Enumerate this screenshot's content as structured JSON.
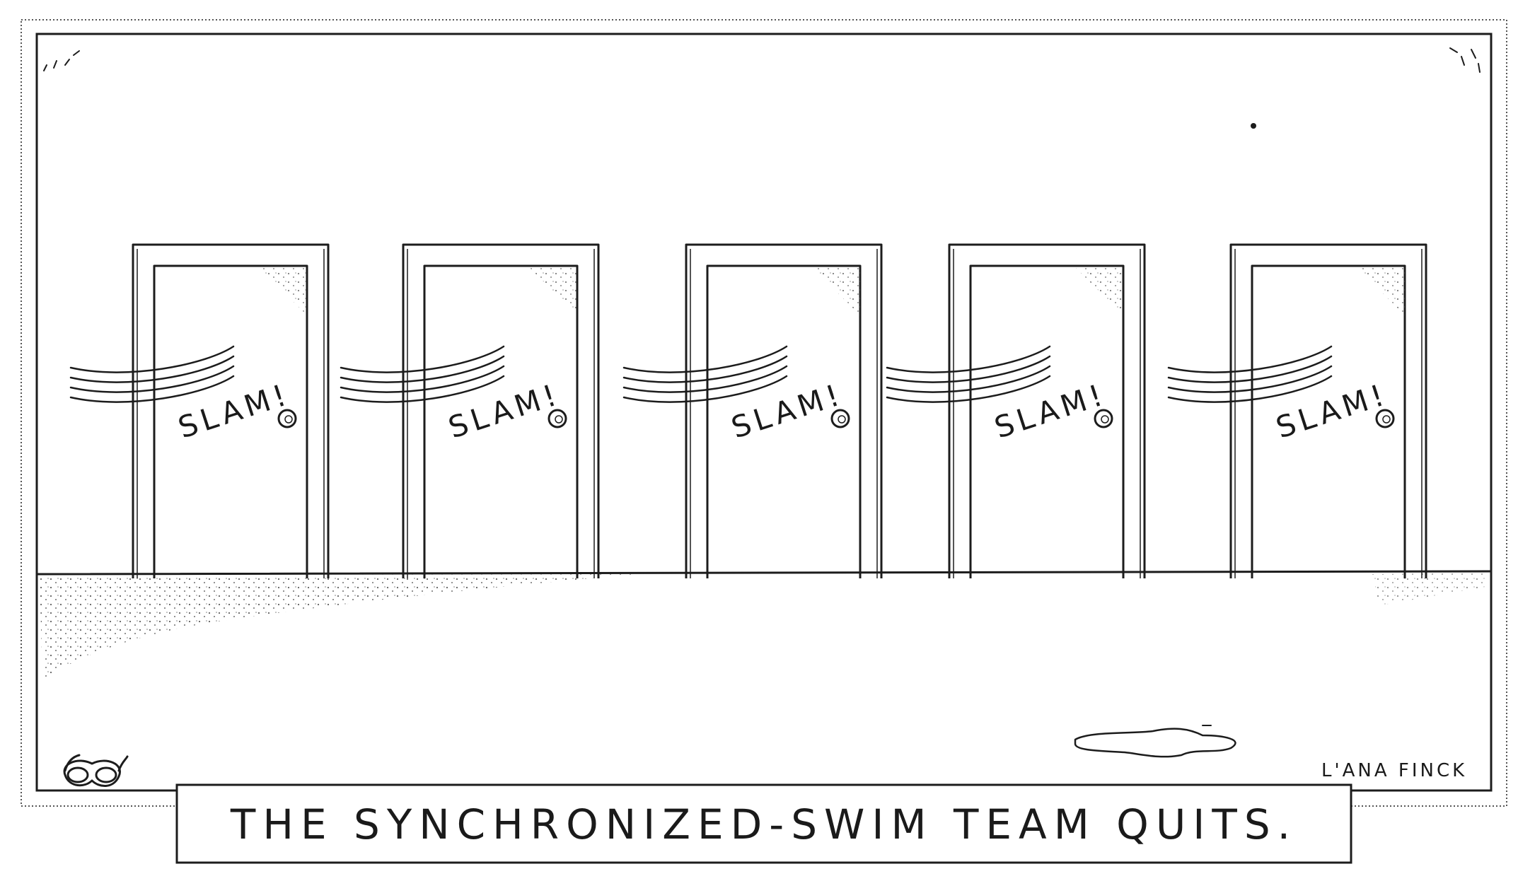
{
  "cartoon": {
    "caption": "THE SYNCHRONIZED-SWIM TEAM QUITS.",
    "signature": "L'ANA FINCK",
    "doors": [
      {
        "sound": "SLAM!"
      },
      {
        "sound": "SLAM!"
      },
      {
        "sound": "SLAM!"
      },
      {
        "sound": "SLAM!"
      },
      {
        "sound": "SLAM!"
      }
    ]
  },
  "colors": {
    "ink": "#1c1c1c",
    "paper": "#ffffff"
  }
}
